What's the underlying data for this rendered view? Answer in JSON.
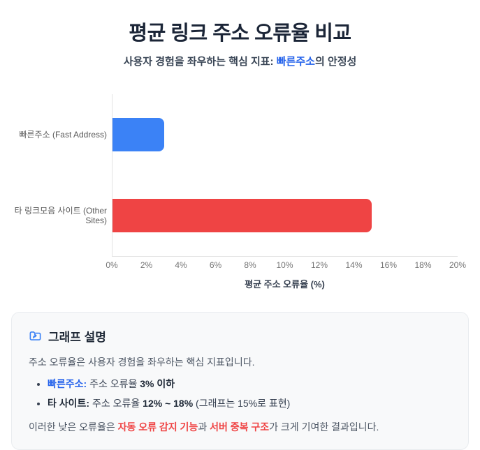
{
  "header": {
    "title": "평균 링크 주소 오류율 비교",
    "subtitle_prefix": "사용자 경험을 좌우하는 핵심 지표: ",
    "subtitle_accent": "빠른주소",
    "subtitle_suffix": "의 안정성"
  },
  "chart_data": {
    "type": "bar",
    "orientation": "horizontal",
    "categories": [
      "빠른주소 (Fast Address)",
      "타 링크모음 사이트 (Other Sites)"
    ],
    "values": [
      3,
      15
    ],
    "bar_colors": [
      "#3b82f6",
      "#ef4444"
    ],
    "xlabel": "평균 주소 오류율 (%)",
    "xlim": [
      0,
      20
    ],
    "x_ticks": [
      "0%",
      "2%",
      "4%",
      "6%",
      "8%",
      "10%",
      "12%",
      "14%",
      "16%",
      "18%",
      "20%"
    ],
    "grid": false,
    "legend": false
  },
  "info_box": {
    "icon": "folder-symlink-icon",
    "heading": "그래프 설명",
    "intro": "주소 오류율은 사용자 경험을 좌우하는 핵심 지표입니다.",
    "bullets": [
      [
        {
          "text": "빠른주소:",
          "style": "accent-bold"
        },
        {
          "text": " 주소 오류율 ",
          "style": "normal"
        },
        {
          "text": "3% 이하",
          "style": "bold"
        }
      ],
      [
        {
          "text": "타 사이트:",
          "style": "bold"
        },
        {
          "text": " 주소 오류율 ",
          "style": "normal"
        },
        {
          "text": "12% ~ 18%",
          "style": "bold"
        },
        {
          "text": " (그래프는 15%로 표현)",
          "style": "normal"
        }
      ]
    ],
    "conclusion": [
      {
        "text": "이러한 낮은 오류율은 ",
        "style": "normal"
      },
      {
        "text": "자동 오류 감지 기능",
        "style": "danger-bold"
      },
      {
        "text": "과 ",
        "style": "normal"
      },
      {
        "text": "서버 중복 구조",
        "style": "danger-bold"
      },
      {
        "text": "가 크게 기여한 결과입니다.",
        "style": "normal"
      }
    ]
  },
  "colors": {
    "accent_blue": "#2563eb",
    "bar_blue": "#3b82f6",
    "bar_red": "#ef4444",
    "title_dark": "#1b2537",
    "info_box_bg": "#f8f9fa"
  }
}
